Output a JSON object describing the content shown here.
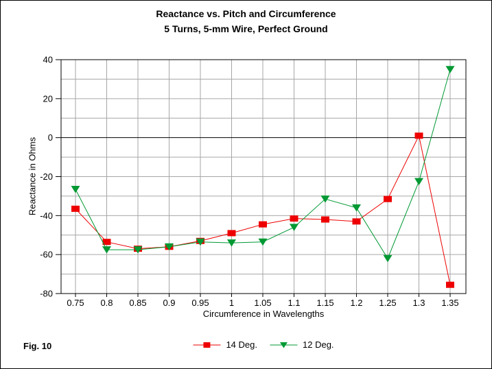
{
  "title": {
    "line1": "Reactance vs. Pitch and Circumference",
    "line2": "5 Turns, 5-mm Wire, Perfect Ground"
  },
  "figure_label": "Fig. 10",
  "chart_data": {
    "type": "line",
    "title": "Reactance vs. Pitch and Circumference — 5 Turns, 5-mm Wire, Perfect Ground",
    "xlabel": "Circumference in Wavelengths",
    "ylabel": "Reactance in Ohms",
    "x": [
      0.75,
      0.8,
      0.85,
      0.9,
      0.95,
      1,
      1.05,
      1.1,
      1.15,
      1.2,
      1.25,
      1.3,
      1.35
    ],
    "x_tick_labels": [
      "0.75",
      "0.8",
      "0.85",
      "0.9",
      "0.95",
      "1",
      "1.05",
      "1.1",
      "1.15",
      "1.2",
      "1.25",
      "1.3",
      "1.35"
    ],
    "ylim": [
      -80,
      40
    ],
    "y_label_step": 20,
    "y_grid_step": 10,
    "grid": true,
    "legend_position": "bottom-center",
    "series": [
      {
        "name": "14 Deg.",
        "color": "#EE0000",
        "marker": "square",
        "values": [
          -36.5,
          -53.5,
          -57,
          -56,
          -53,
          -49,
          -44.5,
          -41.5,
          -42,
          -43,
          -31.5,
          1,
          -75.5
        ]
      },
      {
        "name": "12 Deg.",
        "color": "#009933",
        "marker": "triangle-down",
        "values": [
          -26.5,
          -57.5,
          -57.5,
          -56,
          -53.5,
          -54,
          -53.5,
          -46,
          -31.5,
          -36,
          -62,
          -22.5,
          35
        ]
      }
    ],
    "colors": {
      "grid": "#A6A6A6",
      "axis": "#000000",
      "zero_line": "#000000",
      "background": "#FFFFFF"
    }
  }
}
